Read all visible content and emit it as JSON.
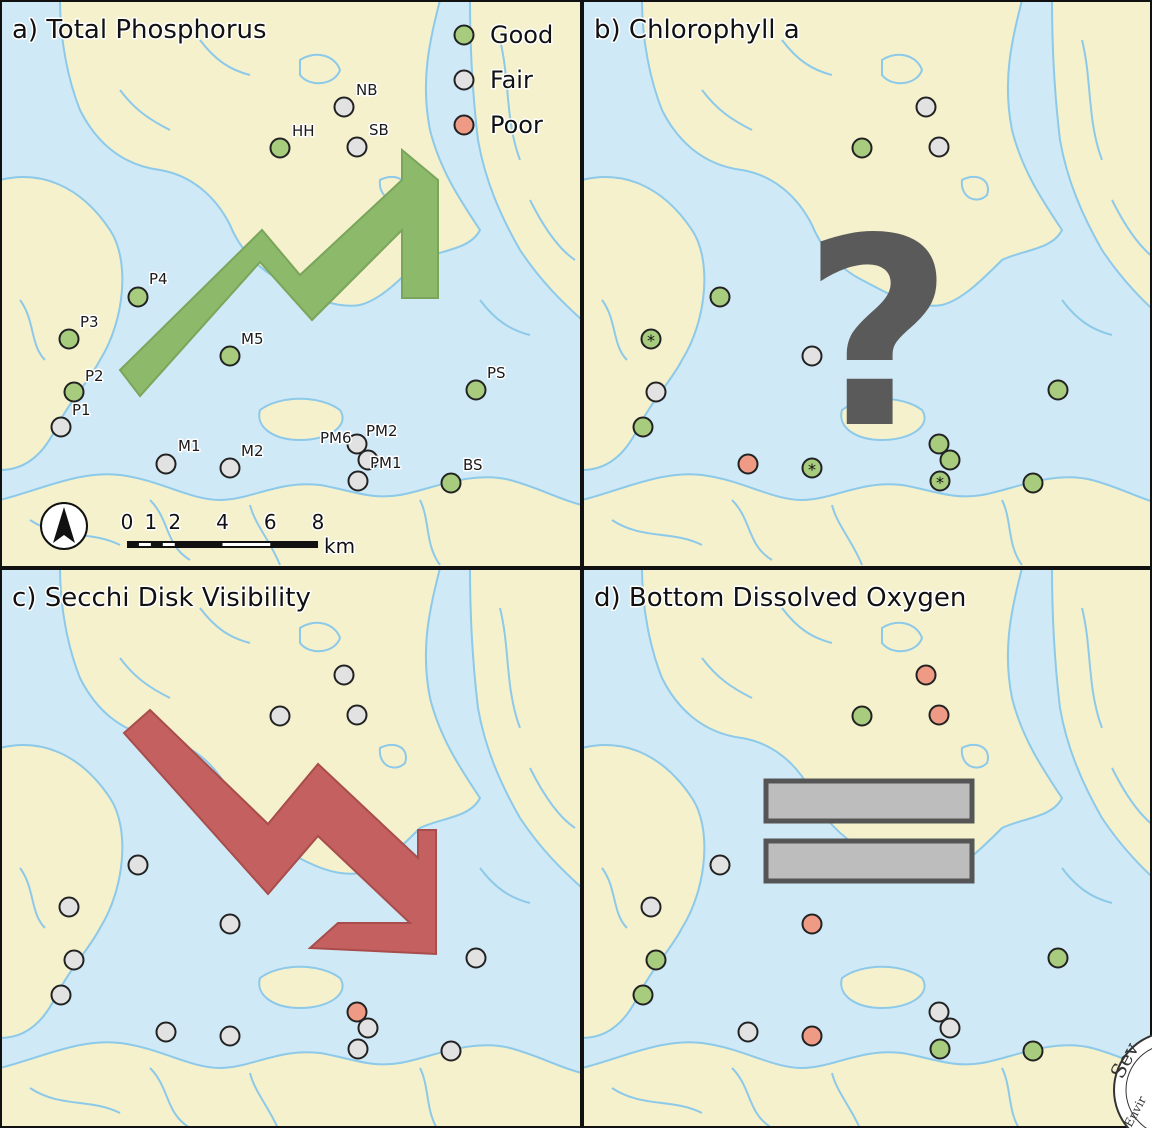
{
  "colors": {
    "water": "#cfe9f7",
    "land": "#f5f1cd",
    "shoreline": "#8dc9e8",
    "good": "#a7cc7e",
    "fair": "#e2e2e2",
    "poor": "#ef9a84",
    "trend_up": "#8db96a",
    "trend_down": "#c4605f",
    "no_change": "#bdbdbd",
    "question": "#5a5a5a"
  },
  "legend": [
    {
      "label": "Good",
      "color_key": "good"
    },
    {
      "label": "Fair",
      "color_key": "fair"
    },
    {
      "label": "Poor",
      "color_key": "poor"
    }
  ],
  "scale_bar": {
    "ticks": [
      "0",
      "1",
      "2",
      "4",
      "6",
      "8"
    ],
    "unit": "km",
    "north_arrow": "north-arrow-icon"
  },
  "sites": [
    "NB",
    "HH",
    "SB",
    "P4",
    "P3",
    "M5",
    "P2",
    "P1",
    "PS",
    "PM6",
    "PM2",
    "PM1",
    "M1",
    "M2",
    "BS"
  ],
  "panels": [
    {
      "title": "a) Total Phosphorus",
      "trend": "increasing",
      "trend_icon": "up-trend-arrow-icon",
      "show_site_labels": true,
      "ratings": {
        "NB": "fair",
        "HH": "good",
        "SB": "fair",
        "P4": "good",
        "P3": "good",
        "M5": "good",
        "P2": "good",
        "P1": "fair",
        "PS": "good",
        "PM6": "fair",
        "PM2": "fair",
        "PM1": "fair",
        "M1": "fair",
        "M2": "fair",
        "BS": "good"
      },
      "flagged": []
    },
    {
      "title": "b) Chlorophyll a",
      "trend": "unknown",
      "trend_icon": "question-mark-icon",
      "trend_text": "?",
      "show_site_labels": false,
      "ratings": {
        "NB": "fair",
        "HH": "good",
        "SB": "fair",
        "P4": "good",
        "P3": "good",
        "M5": "fair",
        "P2": "fair",
        "P1": "good",
        "PS": "good",
        "PM6": "good",
        "PM2": "good",
        "PM1": "good",
        "M1": "poor",
        "M2": "good",
        "BS": "good"
      },
      "flagged": [
        "P3",
        "M2",
        "PM1"
      ],
      "flag_symbol": "*"
    },
    {
      "title": "c) Secchi Disk Visibility",
      "trend": "decreasing",
      "trend_icon": "down-trend-arrow-icon",
      "show_site_labels": false,
      "ratings": {
        "NB": "fair",
        "HH": "fair",
        "SB": "fair",
        "P4": "fair",
        "P3": "fair",
        "M5": "fair",
        "P2": "fair",
        "P1": "fair",
        "PS": "fair",
        "PM6": "poor",
        "PM2": "fair",
        "PM1": "fair",
        "M1": "fair",
        "M2": "fair",
        "BS": "fair"
      },
      "flagged": []
    },
    {
      "title": "d) Bottom Dissolved Oxygen",
      "trend": "no change",
      "trend_icon": "equals-sign-icon",
      "show_site_labels": false,
      "ratings": {
        "NB": "poor",
        "HH": "good",
        "SB": "poor",
        "P4": "fair",
        "P3": "fair",
        "M5": "poor",
        "P2": "good",
        "P1": "good",
        "PS": "good",
        "PM6": "fair",
        "PM2": "fair",
        "PM1": "good",
        "M1": "fair",
        "M2": "poor",
        "BS": "good"
      },
      "flagged": []
    }
  ],
  "seal": {
    "text": "Sev",
    "subtext": "Envir",
    "icon": "seal-logo-icon"
  }
}
